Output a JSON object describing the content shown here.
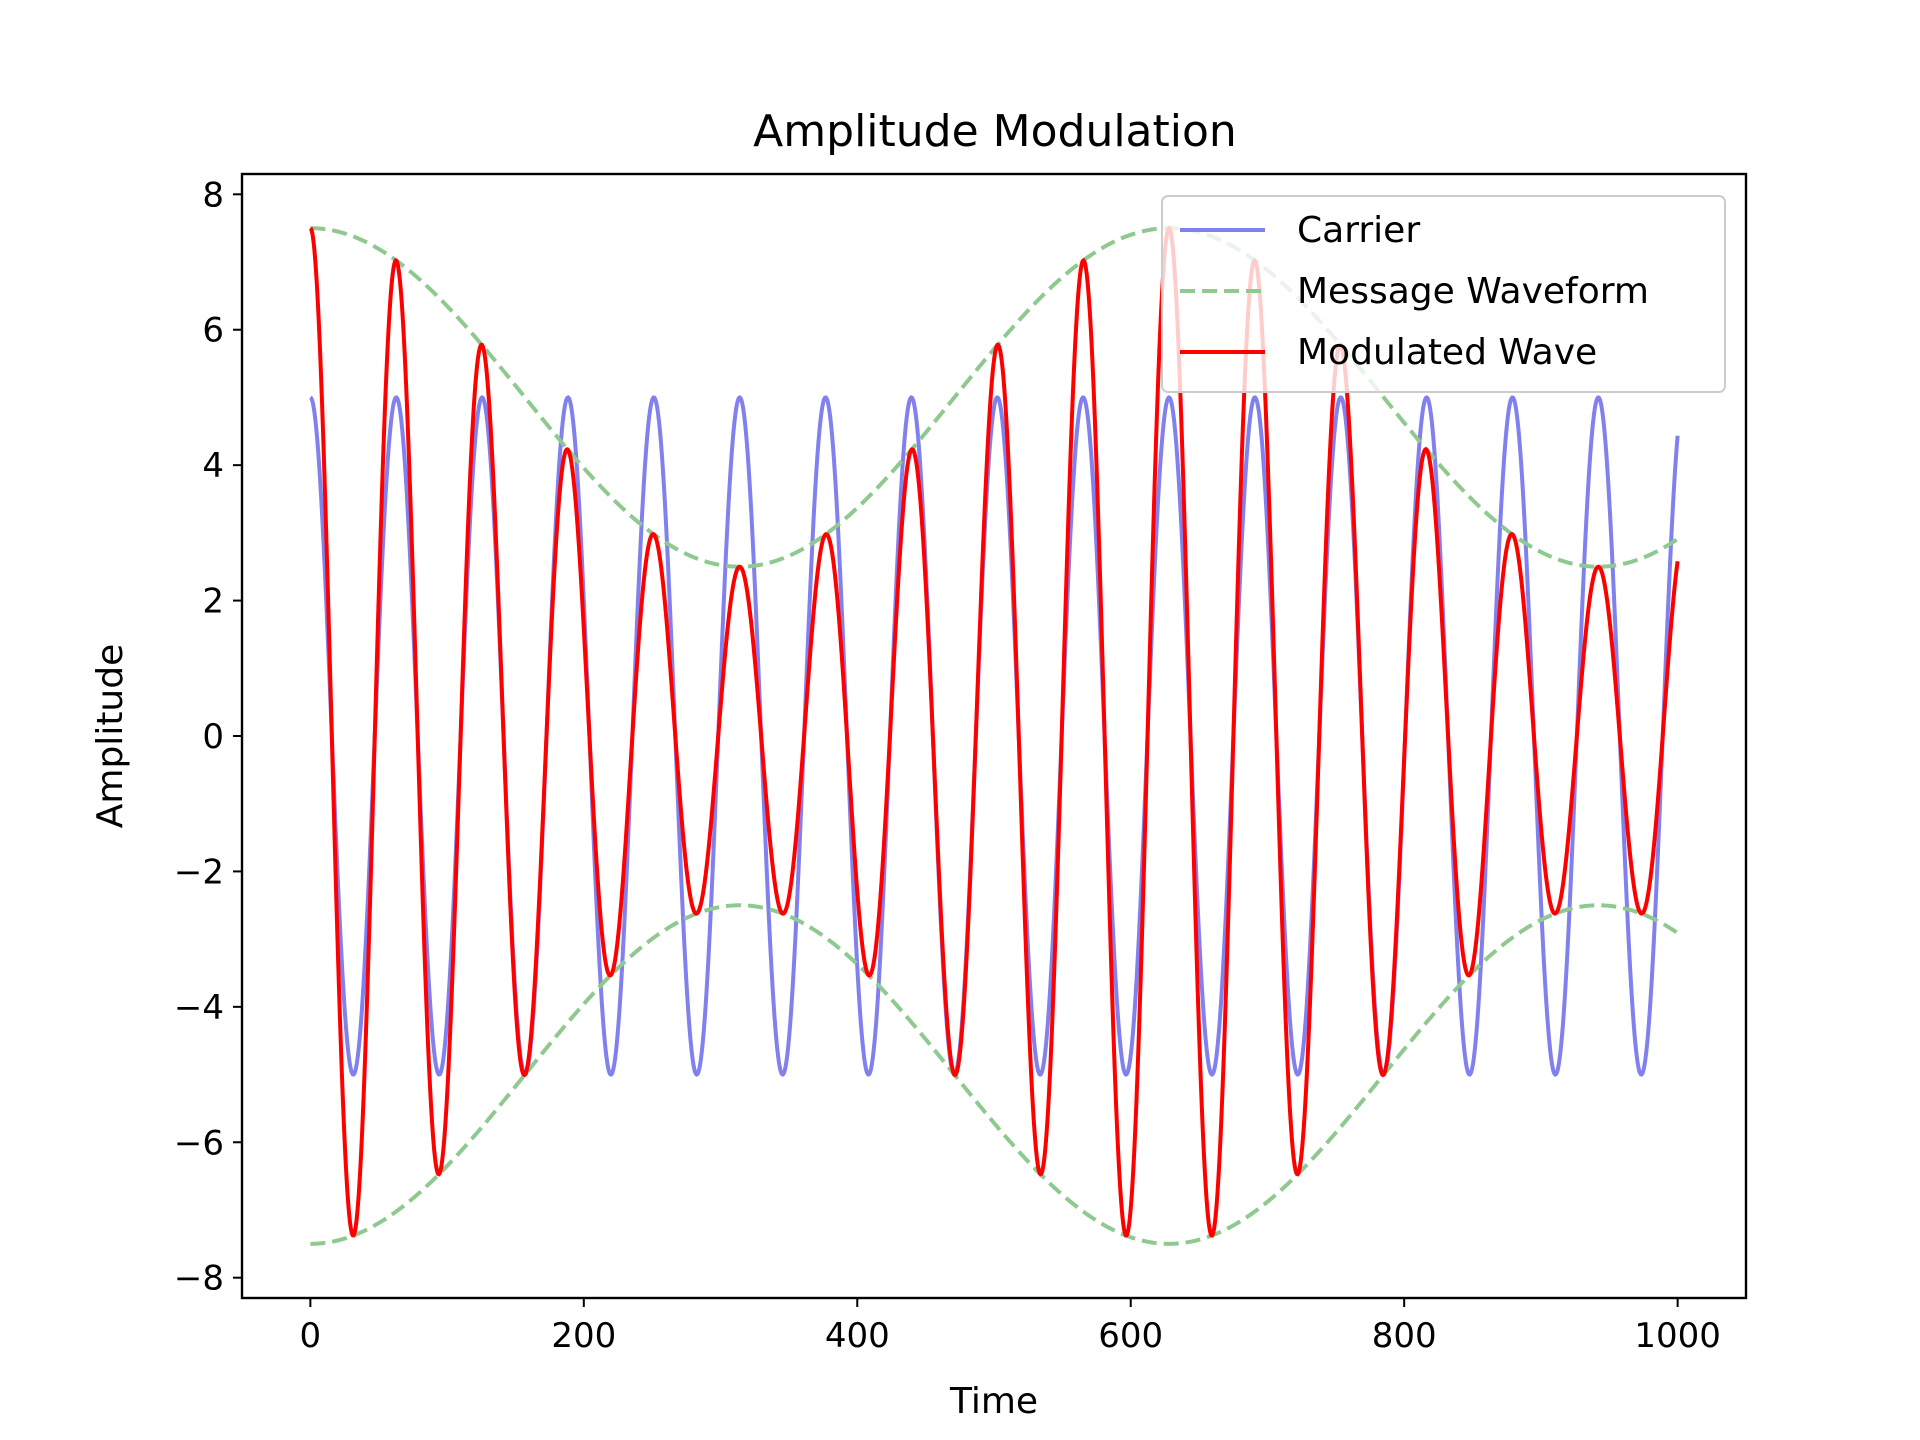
{
  "chart_data": {
    "type": "line",
    "title": "Amplitude Modulation",
    "xlabel": "Time",
    "ylabel": "Amplitude",
    "xlim": [
      -50,
      1050
    ],
    "ylim": [
      -8.3,
      8.3
    ],
    "xticks": [
      0,
      200,
      400,
      600,
      800,
      1000
    ],
    "xtick_labels": [
      "0",
      "200",
      "400",
      "600",
      "800",
      "1000"
    ],
    "yticks": [
      -8,
      -6,
      -4,
      -2,
      0,
      2,
      4,
      6,
      8
    ],
    "ytick_labels": [
      "−8",
      "−6",
      "−4",
      "−2",
      "0",
      "2",
      "4",
      "6",
      "8"
    ],
    "grid": false,
    "legend_position": "upper right",
    "carrier": {
      "amplitude": 5,
      "period": 62.8
    },
    "message": {
      "center": 5,
      "amplitude": 2.5,
      "period": 628
    },
    "series": [
      {
        "name": "Carrier",
        "color": "#8080ee",
        "style": "solid",
        "description": "5*cos(2*pi*t/62.8)",
        "x": [
          0,
          31.4,
          62.8,
          94.2,
          125.6,
          157,
          188.4,
          219.8,
          251.2,
          282.6,
          314,
          345.4,
          376.8,
          408.2,
          439.6,
          471,
          502.4,
          533.8,
          565.2,
          596.6,
          628,
          659.4,
          690.8,
          722.2,
          753.6,
          785,
          816.4,
          847.8,
          879.2,
          910.6,
          942,
          973.4,
          1000
        ],
        "y": [
          5,
          -5,
          5,
          -5,
          5,
          -5,
          5,
          -5,
          5,
          -5,
          5,
          -5,
          5,
          -5,
          5,
          -5,
          5,
          -5,
          5,
          -5,
          5,
          -5,
          5,
          -5,
          5,
          -5,
          5,
          -5,
          5,
          -5,
          5,
          -5,
          4.33
        ]
      },
      {
        "name": "Message Waveform",
        "color": "#8fc98f",
        "style": "dashed",
        "description": "±(5+2.5*cos(2*pi*t/628))",
        "x": [
          0,
          157,
          314,
          471,
          628,
          785,
          942,
          1000
        ],
        "y": [
          7.5,
          5,
          2.5,
          5,
          7.5,
          5,
          2.5,
          2.86
        ]
      },
      {
        "name": "Modulated Wave",
        "color": "#ff0000",
        "style": "solid",
        "description": "(5+2.5*cos(2*pi*t/628))*cos(2*pi*t/62.8)",
        "x": [
          0,
          31.4,
          62.8,
          94.2,
          125.6,
          157,
          188.4,
          219.8,
          251.2,
          282.6,
          314,
          345.4,
          376.8,
          408.2,
          439.6,
          471,
          502.4,
          533.8,
          565.2,
          596.6,
          628,
          659.4,
          690.8,
          722.2,
          753.6,
          785,
          816.4,
          847.8,
          879.2,
          910.6,
          942,
          973.4,
          1000
        ],
        "y": [
          7.5,
          -7.38,
          7.02,
          -6.47,
          5.77,
          -5,
          4.23,
          -3.53,
          2.98,
          -2.62,
          2.5,
          -2.62,
          2.98,
          -3.53,
          4.23,
          -5,
          5.77,
          -6.47,
          7.02,
          -7.38,
          7.5,
          -7.38,
          7.02,
          -6.47,
          5.77,
          -5,
          4.23,
          -3.53,
          2.98,
          -2.62,
          2.5,
          -2.62,
          2.51
        ]
      }
    ]
  }
}
